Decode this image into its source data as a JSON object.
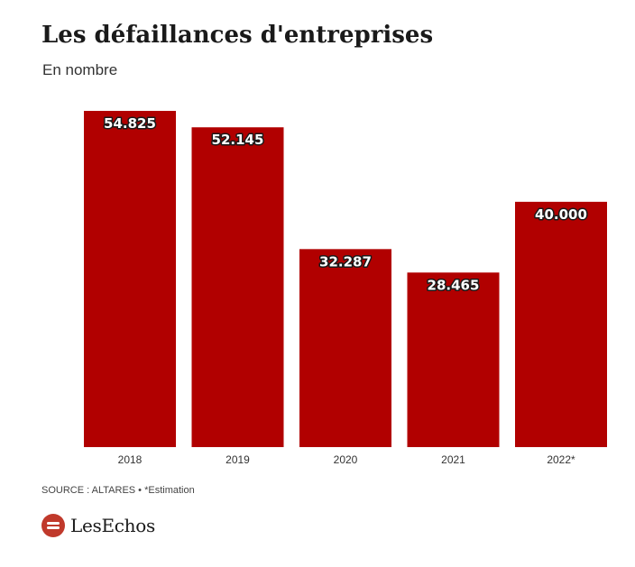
{
  "header": {
    "title": "Les défaillances d'entreprises",
    "subtitle": "En nombre"
  },
  "chart_data": {
    "type": "bar",
    "title": "Les défaillances d'entreprises",
    "subtitle": "En nombre",
    "categories": [
      "2018",
      "2019",
      "2020",
      "2021",
      "2022*"
    ],
    "values": [
      54825,
      52145,
      32287,
      28465,
      40000
    ],
    "value_labels": [
      "54.825",
      "52.145",
      "32.287",
      "28.465",
      "40.000"
    ],
    "xlabel": "",
    "ylabel": "",
    "ylim": [
      0,
      54825
    ],
    "grid": false,
    "legend": "none",
    "bar_color": "#b10000"
  },
  "footer": {
    "source": "SOURCE : ALTARES • *Estimation",
    "brand": "LesEchos"
  },
  "colors": {
    "bar": "#b10000",
    "logo": "#c0392b"
  },
  "icons": {
    "logo": "les-echos-logo-icon"
  }
}
